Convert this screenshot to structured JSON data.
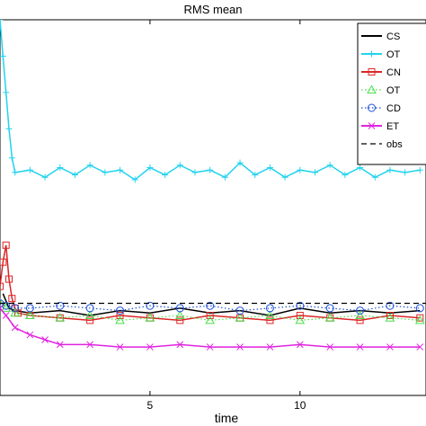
{
  "chart_data": {
    "type": "line",
    "title": "RMS mean",
    "xlabel": "time",
    "ylabel": "",
    "xlim": [
      0,
      14.2
    ],
    "ylim": [
      0,
      1.55
    ],
    "xticks": [
      5,
      10
    ],
    "grid": false,
    "legend_position": "top-right",
    "series": [
      {
        "name": "CS",
        "color": "#000000",
        "style": "solid",
        "marker": "none",
        "x": [
          0.1,
          0.3,
          0.5,
          1,
          2,
          3,
          4,
          5,
          6,
          7,
          8,
          9,
          10,
          11,
          12,
          13,
          14
        ],
        "y": [
          0.42,
          0.36,
          0.35,
          0.34,
          0.35,
          0.33,
          0.35,
          0.34,
          0.36,
          0.34,
          0.35,
          0.33,
          0.36,
          0.34,
          0.35,
          0.34,
          0.35
        ]
      },
      {
        "name": "OT",
        "color": "#22d3ee",
        "style": "solid",
        "marker": "+",
        "x": [
          0,
          0.1,
          0.2,
          0.3,
          0.4,
          0.5,
          1,
          1.5,
          2,
          2.5,
          3,
          3.5,
          4,
          4.5,
          5,
          5.5,
          6,
          6.5,
          7,
          7.5,
          8,
          8.5,
          9,
          9.5,
          10,
          10.5,
          11,
          11.5,
          12,
          12.5,
          13,
          13.5,
          14
        ],
        "y": [
          1.55,
          1.4,
          1.25,
          1.1,
          0.98,
          0.92,
          0.93,
          0.9,
          0.94,
          0.91,
          0.95,
          0.92,
          0.93,
          0.89,
          0.94,
          0.91,
          0.95,
          0.92,
          0.93,
          0.9,
          0.96,
          0.91,
          0.94,
          0.9,
          0.93,
          0.92,
          0.95,
          0.91,
          0.94,
          0.9,
          0.93,
          0.92,
          0.93
        ]
      },
      {
        "name": "CN",
        "color": "#dc2626",
        "style": "solid",
        "marker": "square",
        "x": [
          0,
          0.1,
          0.2,
          0.3,
          0.4,
          0.5,
          0.6,
          1,
          2,
          3,
          4,
          5,
          6,
          7,
          8,
          9,
          10,
          11,
          12,
          13,
          14
        ],
        "y": [
          0.45,
          0.55,
          0.62,
          0.48,
          0.4,
          0.36,
          0.34,
          0.33,
          0.32,
          0.31,
          0.33,
          0.32,
          0.31,
          0.33,
          0.32,
          0.31,
          0.33,
          0.32,
          0.31,
          0.33,
          0.32
        ]
      },
      {
        "name": "OT",
        "color": "#4ade4a",
        "style": "dotted",
        "marker": "triangle",
        "x": [
          0,
          0.2,
          0.5,
          1,
          2,
          3,
          4,
          5,
          6,
          7,
          8,
          9,
          10,
          11,
          12,
          13,
          14
        ],
        "y": [
          0.38,
          0.36,
          0.34,
          0.33,
          0.32,
          0.33,
          0.31,
          0.32,
          0.33,
          0.31,
          0.32,
          0.33,
          0.31,
          0.32,
          0.33,
          0.32,
          0.31
        ]
      },
      {
        "name": "CD",
        "color": "#1d4ed8",
        "style": "dotted",
        "marker": "circle",
        "x": [
          0,
          0.2,
          0.5,
          1,
          2,
          3,
          4,
          5,
          6,
          7,
          8,
          9,
          10,
          11,
          12,
          13,
          14
        ],
        "y": [
          0.38,
          0.37,
          0.36,
          0.36,
          0.37,
          0.36,
          0.35,
          0.37,
          0.36,
          0.37,
          0.35,
          0.36,
          0.37,
          0.36,
          0.35,
          0.37,
          0.36
        ]
      },
      {
        "name": "ET",
        "color": "#e023e0",
        "style": "solid",
        "marker": "x",
        "x": [
          0,
          0.2,
          0.5,
          1,
          1.5,
          2,
          3,
          4,
          5,
          6,
          7,
          8,
          9,
          10,
          11,
          12,
          13,
          14
        ],
        "y": [
          0.36,
          0.33,
          0.28,
          0.25,
          0.23,
          0.21,
          0.21,
          0.2,
          0.2,
          0.21,
          0.2,
          0.2,
          0.2,
          0.21,
          0.2,
          0.2,
          0.2,
          0.2
        ]
      },
      {
        "name": "obs",
        "color": "#000000",
        "style": "dashed",
        "marker": "none",
        "x": [
          0,
          14.2
        ],
        "y": [
          0.38,
          0.38
        ]
      }
    ]
  },
  "colors": {
    "axis": "#000000",
    "background": "#ffffff"
  }
}
